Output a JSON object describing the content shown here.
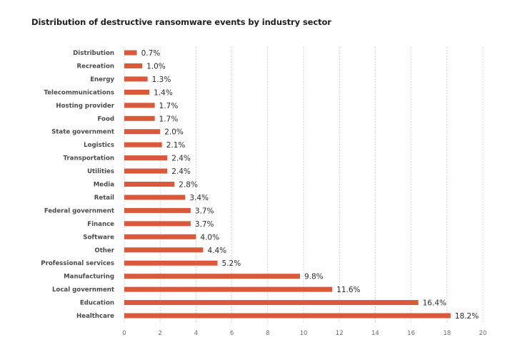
{
  "chart_data": {
    "type": "bar",
    "orientation": "horizontal",
    "title": "Distribution of destructive ransomware events by industry sector",
    "categories": [
      "Distribution",
      "Recreation",
      "Energy",
      "Telecommunications",
      "Hosting provider",
      "Food",
      "State government",
      "Logistics",
      "Transportation",
      "Utilities",
      "Media",
      "Retail",
      "Federal government",
      "Finance",
      "Software",
      "Other",
      "Professional services",
      "Manufacturing",
      "Local government",
      "Education",
      "Healthcare"
    ],
    "values": [
      0.7,
      1.0,
      1.3,
      1.4,
      1.7,
      1.7,
      2.0,
      2.1,
      2.4,
      2.4,
      2.8,
      3.4,
      3.7,
      3.7,
      4.0,
      4.4,
      5.2,
      9.8,
      11.6,
      16.4,
      18.2
    ],
    "value_labels": [
      "0.7%",
      "1.0%",
      "1.3%",
      "1.4%",
      "1.7%",
      "1.7%",
      "2.0%",
      "2.1%",
      "2.4%",
      "2.4%",
      "2.8%",
      "3.4%",
      "3.7%",
      "3.7%",
      "4.0%",
      "4.4%",
      "5.2%",
      "9.8%",
      "11.6%",
      "16.4%",
      "18.2%"
    ],
    "x_ticks": [
      "0",
      "2",
      "4",
      "6",
      "8",
      "10",
      "12",
      "14",
      "16",
      "18",
      "20"
    ],
    "xlim": [
      0,
      20
    ],
    "xlabel": "",
    "ylabel": "",
    "grid": "vertical dashed",
    "bar_color": "#d9593a",
    "legend": "none"
  }
}
